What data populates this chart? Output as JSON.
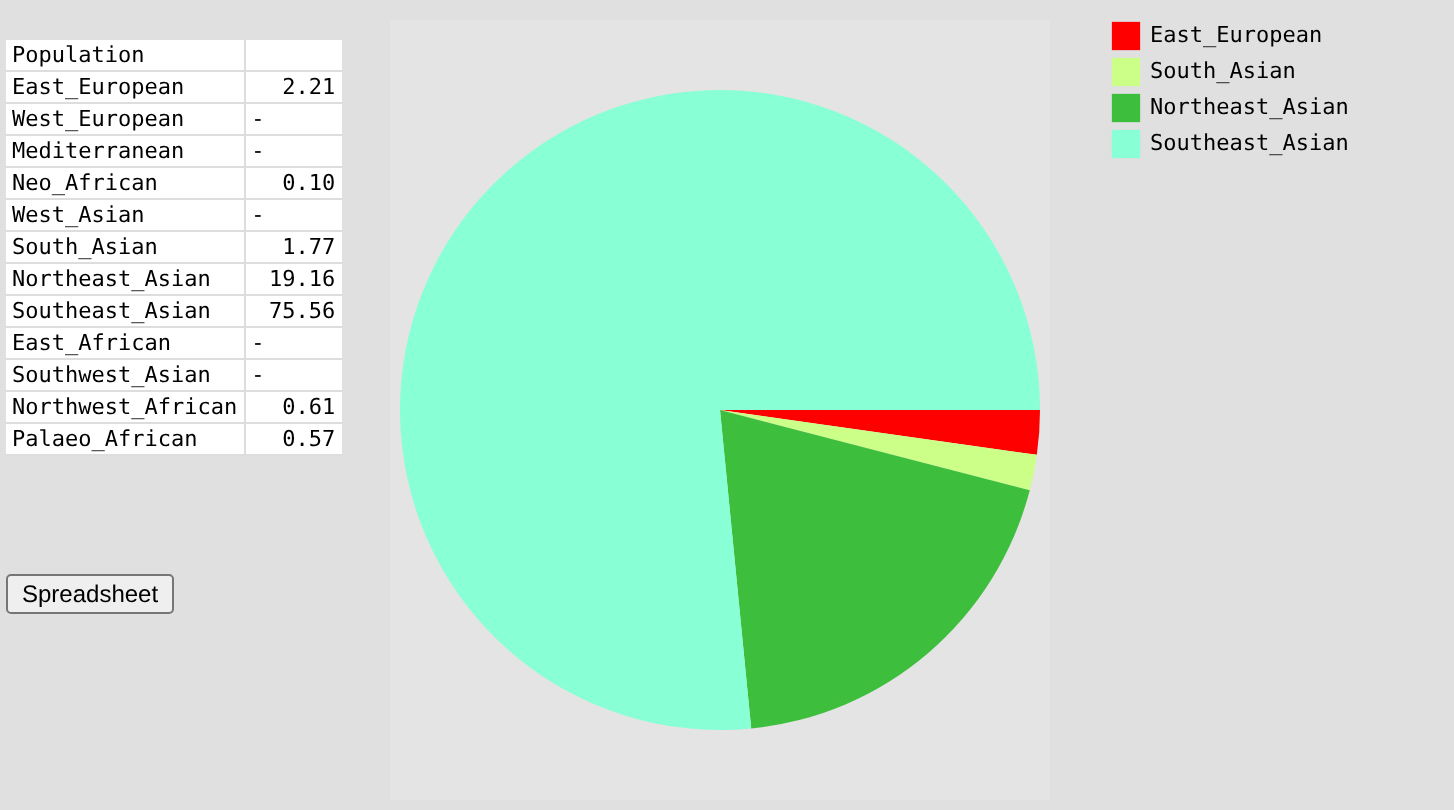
{
  "chart_data": [
    {
      "type": "other",
      "title": "Population",
      "annotations": [
        "East_European",
        "2.21",
        "West_European",
        "-",
        "Mediterranean",
        "-",
        "Neo_African",
        "0.10",
        "West_Asian",
        "-",
        "South_Asian",
        "1.77",
        "Northeast_Asian",
        "19.16",
        "Southeast_Asian",
        "75.56",
        "East_African",
        "-",
        "Southwest_Asian",
        "-",
        "Northwest_African",
        "0.61",
        "Palaeo_African",
        "0.57",
        "Spreadsheet"
      ]
    },
    {
      "type": "pie",
      "categories": [
        "East_European",
        "South_Asian",
        "Northeast_Asian",
        "Southeast_Asian"
      ],
      "values": [
        2.21,
        1.77,
        19.16,
        75.56
      ],
      "colors": [
        "#ff0000",
        "#ccff88",
        "#3dbf3d",
        "#88ffd4"
      ],
      "legend": "right"
    }
  ]
}
